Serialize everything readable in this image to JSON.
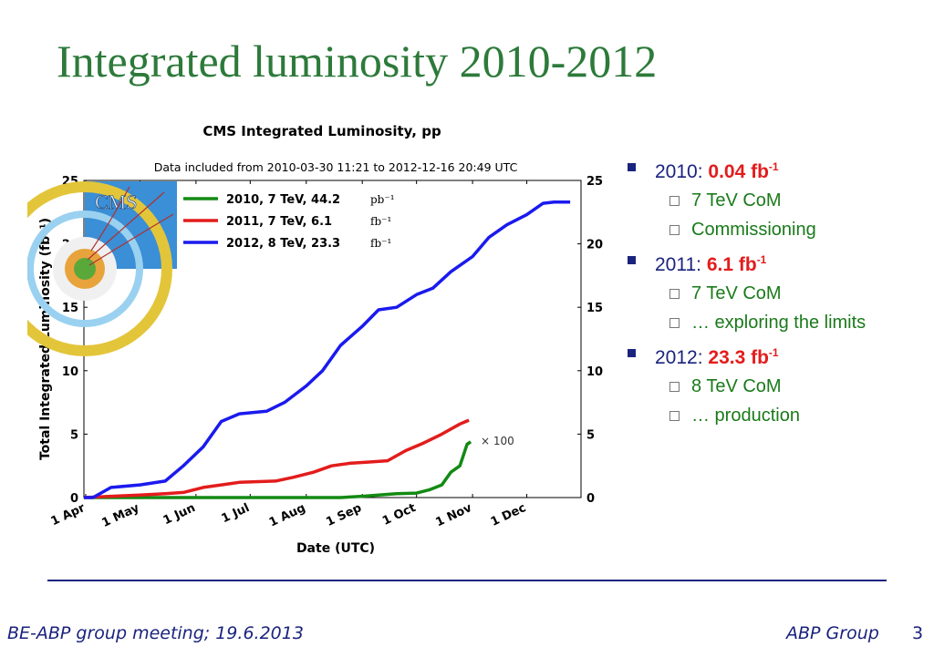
{
  "slide": {
    "title": "Integrated luminosity 2010-2012",
    "footer_left": "BE-ABP group meeting; 19.6.2013",
    "footer_right": "ABP Group",
    "page_number": "3"
  },
  "bullets": [
    {
      "label": "2010:",
      "value": "0.04 fb",
      "sup": "-1",
      "subs": [
        "7 TeV CoM",
        "Commissioning"
      ]
    },
    {
      "label": "2011:",
      "value": "6.1  fb",
      "sup": "-1",
      "subs": [
        "7 TeV CoM",
        "… exploring the limits"
      ]
    },
    {
      "label": "2012:",
      "value": "23.3  fb",
      "sup": "-1",
      "subs": [
        "8 TeV CoM",
        "… production"
      ]
    }
  ],
  "colors": {
    "title": "#2d7a3a",
    "bullet": "#1a237e",
    "highlight": "#e31c1c",
    "sub": "#1a7a1a"
  },
  "chart_data": {
    "type": "line",
    "title": "CMS Integrated Luminosity, pp",
    "subtitle": "Data included from 2010-03-30 11:21 to 2012-12-16 20:49 UTC",
    "xlabel": "Date (UTC)",
    "ylabel": "Total Integrated Luminosity (fb⁻¹)",
    "ylim": [
      0,
      25
    ],
    "xlim": [
      "03-31",
      "12-31"
    ],
    "yticks": [
      0,
      5,
      10,
      15,
      20,
      25
    ],
    "ytick_labels": [
      "0",
      "5",
      "10",
      "15",
      "20",
      "25"
    ],
    "xticks": [
      {
        "label": "1 Apr",
        "date": "04-01"
      },
      {
        "label": "1 May",
        "date": "05-01"
      },
      {
        "label": "1 Jun",
        "date": "06-01"
      },
      {
        "label": "1 Jul",
        "date": "07-01"
      },
      {
        "label": "1 Aug",
        "date": "08-01"
      },
      {
        "label": "1 Sep",
        "date": "09-01"
      },
      {
        "label": "1 Oct",
        "date": "10-01"
      },
      {
        "label": "1 Nov",
        "date": "11-01"
      },
      {
        "label": "1 Dec",
        "date": "12-01"
      }
    ],
    "annotation": "× 100",
    "legend_position": "top-left",
    "series": [
      {
        "name": "2010, 7 TeV, 44.2",
        "unit": "pb⁻¹",
        "color": "#138a13",
        "x": [
          "03-31",
          "05-01",
          "06-01",
          "07-01",
          "08-01",
          "08-20",
          "09-01",
          "09-10",
          "09-20",
          "10-01",
          "10-08",
          "10-15",
          "10-20",
          "10-25",
          "10-29",
          "10-31"
        ],
        "y": [
          0,
          0,
          0,
          0,
          0,
          0,
          0.1,
          0.2,
          0.3,
          0.35,
          0.6,
          1.0,
          2.0,
          2.5,
          4.2,
          4.4
        ]
      },
      {
        "name": "2011, 7 TeV, 6.1",
        "unit": "fb⁻¹",
        "color": "#e31c1c",
        "x": [
          "03-31",
          "04-15",
          "05-01",
          "05-15",
          "05-25",
          "06-05",
          "06-15",
          "06-25",
          "07-15",
          "07-25",
          "08-05",
          "08-15",
          "08-25",
          "09-05",
          "09-15",
          "09-25",
          "10-05",
          "10-15",
          "10-25",
          "10-30"
        ],
        "y": [
          0,
          0.1,
          0.2,
          0.3,
          0.4,
          0.8,
          1.0,
          1.2,
          1.3,
          1.6,
          2.0,
          2.5,
          2.7,
          2.8,
          2.9,
          3.7,
          4.3,
          5.0,
          5.8,
          6.1
        ]
      },
      {
        "name": "2012, 8 TeV, 23.3",
        "unit": "fb⁻¹",
        "color": "#1a1aee",
        "x": [
          "03-31",
          "04-05",
          "04-15",
          "05-01",
          "05-15",
          "05-25",
          "06-05",
          "06-15",
          "06-25",
          "07-10",
          "07-20",
          "08-01",
          "08-10",
          "08-20",
          "09-01",
          "09-10",
          "09-20",
          "10-01",
          "10-10",
          "10-20",
          "11-01",
          "11-10",
          "11-20",
          "12-01",
          "12-10",
          "12-16",
          "12-25"
        ],
        "y": [
          0,
          0,
          0.8,
          1.0,
          1.3,
          2.5,
          4.0,
          6.0,
          6.6,
          6.8,
          7.5,
          8.8,
          10.0,
          12.0,
          13.5,
          14.8,
          15.0,
          16.0,
          16.5,
          17.8,
          19.0,
          20.5,
          21.5,
          22.3,
          23.2,
          23.3,
          23.3
        ]
      }
    ]
  }
}
